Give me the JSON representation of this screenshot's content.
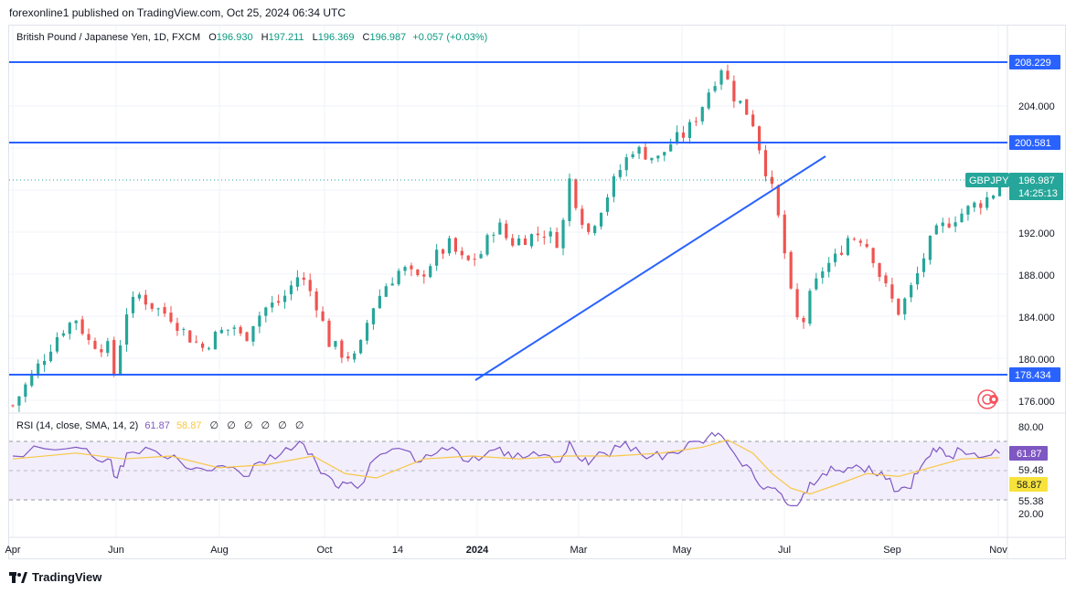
{
  "header": {
    "published": "forexonline1 published on TradingView.com, Oct 25, 2024 06:34 UTC"
  },
  "legend": {
    "symbol": "British Pound / Japanese Yen, 1D, FXCM",
    "o_label": "O",
    "o": "196.930",
    "h_label": "H",
    "h": "197.211",
    "l_label": "L",
    "l": "196.369",
    "c_label": "C",
    "c": "196.987",
    "change": "+0.057 (+0.03%)"
  },
  "rsi_legend": {
    "label": "RSI (14, close, SMA, 14, 2)",
    "rsi": "61.87",
    "sma": "58.87",
    "na": [
      "∅",
      "∅",
      "∅",
      "∅",
      "∅",
      "∅"
    ]
  },
  "price_axis": {
    "ticks": [
      "204.000",
      "192.000",
      "188.000",
      "184.000",
      "180.000",
      "176.000"
    ]
  },
  "rsi_axis": {
    "ticks": [
      "80.00",
      "59.48",
      "55.38",
      "20.00"
    ]
  },
  "time_axis": {
    "labels": [
      "Apr",
      "Jun",
      "Aug",
      "Oct",
      "14",
      "2024",
      "Mar",
      "May",
      "Jul",
      "Sep",
      "Nov"
    ]
  },
  "levels": {
    "resistance_top": "208.229",
    "resistance_mid": "200.581",
    "support": "178.434"
  },
  "price_tag": {
    "symbol": "GBPJPY",
    "price": "196.987",
    "countdown": "14:25:13"
  },
  "rsi_tags": {
    "rsi": "61.87",
    "sma": "58.87"
  },
  "footer": {
    "brand": "TradingView"
  },
  "colors": {
    "up": "#26a69a",
    "down": "#ef5350",
    "level_line": "#2962ff",
    "rsi": "#7e57c2",
    "rsi_sma": "#f7c744",
    "band": "#f3eefc"
  },
  "chart_data": [
    {
      "type": "candlestick",
      "title": "British Pound / Japanese Yen, 1D, FXCM",
      "xlabel": "",
      "ylabel": "",
      "ylim": [
        175.0,
        210.0
      ],
      "x_labels": [
        "Apr",
        "Jun",
        "Aug",
        "Oct",
        "14",
        "2024",
        "Mar",
        "May",
        "Jul",
        "Sep",
        "Nov"
      ],
      "horizontal_levels": [
        208.229,
        200.581,
        178.434
      ],
      "trendline": {
        "from": [
          "2024-01",
          178.4
        ],
        "to": [
          "2024-07",
          199.3
        ]
      },
      "close_path": [
        [
          0.0,
          175.5
        ],
        [
          1.0,
          180.2
        ],
        [
          1.5,
          182.6
        ],
        [
          2.0,
          183.8
        ],
        [
          2.4,
          181.6
        ],
        [
          3.0,
          181.0
        ],
        [
          3.2,
          178.6
        ],
        [
          3.6,
          184.5
        ],
        [
          4.0,
          186.0
        ],
        [
          4.5,
          184.8
        ],
        [
          5.0,
          184.0
        ],
        [
          5.5,
          182.2
        ],
        [
          6.0,
          181.0
        ],
        [
          6.5,
          182.4
        ],
        [
          7.0,
          183.0
        ],
        [
          7.3,
          181.6
        ],
        [
          7.6,
          183.5
        ],
        [
          8.0,
          184.8
        ],
        [
          8.5,
          185.5
        ],
        [
          9.0,
          187.8
        ],
        [
          9.3,
          187.0
        ],
        [
          9.6,
          185.2
        ],
        [
          10.0,
          181.5
        ],
        [
          10.4,
          180.5
        ],
        [
          10.8,
          180.0
        ],
        [
          11.0,
          181.2
        ],
        [
          11.3,
          184.5
        ],
        [
          11.8,
          187.0
        ],
        [
          12.3,
          188.6
        ],
        [
          12.8,
          187.5
        ],
        [
          13.3,
          189.5
        ],
        [
          13.8,
          190.8
        ],
        [
          14.3,
          189.0
        ],
        [
          14.8,
          190.0
        ],
        [
          15.3,
          193.0
        ],
        [
          15.7,
          191.0
        ],
        [
          16.2,
          191.5
        ],
        [
          16.8,
          192.0
        ],
        [
          17.3,
          191.0
        ],
        [
          17.6,
          197.0
        ],
        [
          17.9,
          194.0
        ],
        [
          18.2,
          192.0
        ],
        [
          18.7,
          195.0
        ],
        [
          19.2,
          198.0
        ],
        [
          19.6,
          200.0
        ],
        [
          20.0,
          199.5
        ],
        [
          20.4,
          199.0
        ],
        [
          20.8,
          200.5
        ],
        [
          21.3,
          201.5
        ],
        [
          21.7,
          203.5
        ],
        [
          22.0,
          205.5
        ],
        [
          22.4,
          207.8
        ],
        [
          22.8,
          205.0
        ],
        [
          23.1,
          204.0
        ],
        [
          23.4,
          202.5
        ],
        [
          23.7,
          199.0
        ],
        [
          24.0,
          196.0
        ],
        [
          24.3,
          192.0
        ],
        [
          24.6,
          186.0
        ],
        [
          24.9,
          182.5
        ],
        [
          25.2,
          185.8
        ],
        [
          25.6,
          188.5
        ],
        [
          26.0,
          189.5
        ],
        [
          26.4,
          191.5
        ],
        [
          26.8,
          191.5
        ],
        [
          27.1,
          190.5
        ],
        [
          27.4,
          188.0
        ],
        [
          27.7,
          186.0
        ],
        [
          28.0,
          184.5
        ],
        [
          28.3,
          186.0
        ],
        [
          28.6,
          188.0
        ],
        [
          28.9,
          190.5
        ],
        [
          29.2,
          192.0
        ],
        [
          29.5,
          192.8
        ],
        [
          29.8,
          193.5
        ],
        [
          30.1,
          194.0
        ],
        [
          30.4,
          194.6
        ],
        [
          30.7,
          195.0
        ],
        [
          31.0,
          195.8
        ],
        [
          31.2,
          196.987
        ]
      ]
    },
    {
      "type": "line",
      "title": "RSI (14, close, SMA, 14, 2)",
      "ylim": [
        20,
        80
      ],
      "reference_lines": [
        70,
        50,
        30
      ],
      "series": [
        {
          "name": "RSI",
          "values": [
            [
              0.0,
              60
            ],
            [
              1.0,
              65
            ],
            [
              2.0,
              66
            ],
            [
              2.5,
              60
            ],
            [
              3.0,
              58
            ],
            [
              3.3,
              45
            ],
            [
              3.6,
              62
            ],
            [
              4.2,
              66
            ],
            [
              4.7,
              60
            ],
            [
              5.3,
              56
            ],
            [
              5.8,
              52
            ],
            [
              6.3,
              50
            ],
            [
              6.8,
              52
            ],
            [
              7.3,
              46
            ],
            [
              7.8,
              56
            ],
            [
              8.3,
              58
            ],
            [
              8.8,
              64
            ],
            [
              9.2,
              68
            ],
            [
              9.6,
              55
            ],
            [
              10.0,
              46
            ],
            [
              10.3,
              38
            ],
            [
              10.7,
              42
            ],
            [
              11.0,
              40
            ],
            [
              11.3,
              55
            ],
            [
              11.8,
              62
            ],
            [
              12.4,
              64
            ],
            [
              12.9,
              56
            ],
            [
              13.4,
              62
            ],
            [
              13.9,
              66
            ],
            [
              14.4,
              56
            ],
            [
              14.9,
              60
            ],
            [
              15.4,
              66
            ],
            [
              15.8,
              58
            ],
            [
              16.3,
              60
            ],
            [
              16.8,
              61
            ],
            [
              17.3,
              56
            ],
            [
              17.6,
              70
            ],
            [
              17.9,
              58
            ],
            [
              18.2,
              54
            ],
            [
              18.7,
              62
            ],
            [
              19.2,
              66
            ],
            [
              19.7,
              66
            ],
            [
              20.2,
              60
            ],
            [
              20.7,
              62
            ],
            [
              21.2,
              64
            ],
            [
              21.7,
              70
            ],
            [
              22.1,
              76
            ],
            [
              22.4,
              74
            ],
            [
              22.8,
              62
            ],
            [
              23.2,
              54
            ],
            [
              23.6,
              40
            ],
            [
              24.0,
              38
            ],
            [
              24.3,
              34
            ],
            [
              24.6,
              26
            ],
            [
              24.9,
              29
            ],
            [
              25.2,
              42
            ],
            [
              25.6,
              48
            ],
            [
              26.0,
              50
            ],
            [
              26.4,
              52
            ],
            [
              26.8,
              52
            ],
            [
              27.2,
              48
            ],
            [
              27.6,
              44
            ],
            [
              28.0,
              36
            ],
            [
              28.3,
              38
            ],
            [
              28.6,
              48
            ],
            [
              29.0,
              60
            ],
            [
              29.3,
              66
            ],
            [
              29.6,
              60
            ],
            [
              30.0,
              64
            ],
            [
              30.4,
              62
            ],
            [
              30.8,
              60
            ],
            [
              31.2,
              61.87
            ]
          ]
        },
        {
          "name": "SMA",
          "values": [
            [
              0.0,
              58
            ],
            [
              2.0,
              62
            ],
            [
              3.5,
              58
            ],
            [
              5.0,
              60
            ],
            [
              6.5,
              52
            ],
            [
              8.0,
              54
            ],
            [
              9.5,
              60
            ],
            [
              10.5,
              48
            ],
            [
              11.5,
              45
            ],
            [
              13.0,
              58
            ],
            [
              14.5,
              60
            ],
            [
              16.0,
              58
            ],
            [
              17.5,
              60
            ],
            [
              19.0,
              60
            ],
            [
              20.5,
              62
            ],
            [
              21.8,
              66
            ],
            [
              22.6,
              71
            ],
            [
              23.4,
              62
            ],
            [
              24.0,
              48
            ],
            [
              24.6,
              38
            ],
            [
              25.2,
              34
            ],
            [
              26.0,
              40
            ],
            [
              27.0,
              48
            ],
            [
              28.0,
              46
            ],
            [
              29.0,
              52
            ],
            [
              30.0,
              58
            ],
            [
              31.2,
              58.87
            ]
          ]
        }
      ]
    }
  ]
}
